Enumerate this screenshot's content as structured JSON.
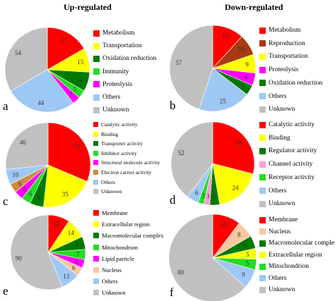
{
  "headers": {
    "left": "Up-regulated",
    "right": "Down-regulated"
  },
  "chart_data": [
    {
      "type": "pie",
      "panel": "a",
      "slices": [
        {
          "name": "Metabolism",
          "value": 27,
          "color": "#ff0000"
        },
        {
          "name": "Transportation",
          "value": 15,
          "color": "#ffff00"
        },
        {
          "name": "Oxidation reduction",
          "value": 12,
          "color": "#007a00"
        },
        {
          "name": "Immunity",
          "value": 5,
          "color": "#22dd22"
        },
        {
          "name": "Proteolysis",
          "value": 5,
          "color": "#ff00ff"
        },
        {
          "name": "Others",
          "value": 44,
          "color": "#9ec8f4"
        },
        {
          "name": "Unknown",
          "value": 54,
          "color": "#c0c0c0"
        }
      ]
    },
    {
      "type": "pie",
      "panel": "b",
      "slices": [
        {
          "name": "Metabolism",
          "value": 15,
          "color": "#ff0000"
        },
        {
          "name": "Reproduction",
          "value": 10,
          "color": "#a83a12"
        },
        {
          "name": "Transportation",
          "value": 9,
          "color": "#ffff00"
        },
        {
          "name": "Proteolysis",
          "value": 6,
          "color": "#ff00ff"
        },
        {
          "name": "Oxidation reduction",
          "value": 5,
          "color": "#007a00"
        },
        {
          "name": "Others",
          "value": 25,
          "color": "#9ec8f4"
        },
        {
          "name": "Unknown",
          "value": 57,
          "color": "#c0c0c0"
        }
      ]
    },
    {
      "type": "pie",
      "panel": "c",
      "slices": [
        {
          "name": "Catalytic activity",
          "value": 54,
          "color": "#ff0000"
        },
        {
          "name": "Binding",
          "value": 35,
          "color": "#ffff00"
        },
        {
          "name": "Transporter activity",
          "value": 9,
          "color": "#007a00"
        },
        {
          "name": "Inhibitor activity",
          "value": 6,
          "color": "#22dd22"
        },
        {
          "name": "Structural molecule activity",
          "value": 6,
          "color": "#ff00ff"
        },
        {
          "name": "Electron carrier activity",
          "value": 6,
          "color": "#d08a3e"
        },
        {
          "name": "Others",
          "value": 10,
          "color": "#9ec8f4"
        },
        {
          "name": "Unknown",
          "value": 46,
          "color": "#c0c0c0"
        }
      ]
    },
    {
      "type": "pie",
      "panel": "d",
      "slices": [
        {
          "name": "Catalytic activity",
          "value": 38,
          "color": "#ff0000"
        },
        {
          "name": "Binding",
          "value": 24,
          "color": "#ffff00"
        },
        {
          "name": "Regulator activity",
          "value": 5,
          "color": "#007a00"
        },
        {
          "name": "Channel activity",
          "value": 3,
          "color": "#ff9ad5"
        },
        {
          "name": "Receptor activity",
          "value": 3,
          "color": "#22dd22"
        },
        {
          "name": "Others",
          "value": 6,
          "color": "#9ec8f4"
        },
        {
          "name": "Unknown",
          "value": 52,
          "color": "#c0c0c0"
        }
      ]
    },
    {
      "type": "pie",
      "panel": "e",
      "slices": [
        {
          "name": "Membrane",
          "value": 15,
          "color": "#ff0000"
        },
        {
          "name": "Extracellular region",
          "value": 14,
          "color": "#ffff00"
        },
        {
          "name": "Macromolecular complex",
          "value": 9,
          "color": "#007a00"
        },
        {
          "name": "Mitochondrion",
          "value": 7,
          "color": "#22dd22"
        },
        {
          "name": "Lipid particle",
          "value": 6,
          "color": "#ff00ff"
        },
        {
          "name": "Nucleus",
          "value": 6,
          "color": "#f9c8a0"
        },
        {
          "name": "Others",
          "value": 13,
          "color": "#9ec8f4"
        },
        {
          "name": "Unknown",
          "value": 90,
          "color": "#c0c0c0"
        }
      ]
    },
    {
      "type": "pie",
      "panel": "f",
      "slices": [
        {
          "name": "Membrane",
          "value": 13,
          "color": "#ff0000"
        },
        {
          "name": "Nucleus",
          "value": 8,
          "color": "#f9c8a0"
        },
        {
          "name": "Macromolecular complex",
          "value": 6,
          "color": "#007a00"
        },
        {
          "name": "Extracellular region",
          "value": 5,
          "color": "#ffff00"
        },
        {
          "name": "Mitochondrion",
          "value": 5,
          "color": "#22dd22"
        },
        {
          "name": "Others",
          "value": 9,
          "color": "#9ec8f4"
        },
        {
          "name": "Unknown",
          "value": 80,
          "color": "#c0c0c0"
        }
      ]
    }
  ]
}
